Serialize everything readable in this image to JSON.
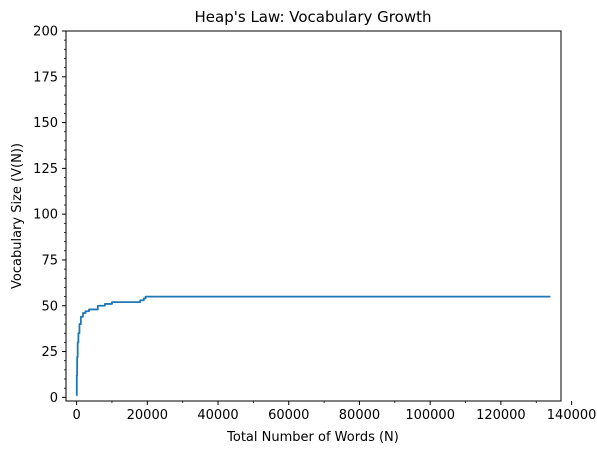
{
  "chart_data": {
    "type": "line",
    "title": "Heap's Law: Vocabulary Growth",
    "xlabel": "Total Number of Words (N)",
    "ylabel": "Vocabulary Size (V(N))",
    "xlim": [
      -3000,
      137000
    ],
    "ylim": [
      -2,
      200
    ],
    "xticks": [
      0,
      20000,
      40000,
      60000,
      80000,
      100000,
      120000,
      140000
    ],
    "xtick_labels": [
      "0",
      "20000",
      "40000",
      "60000",
      "80000",
      "100000",
      "120000",
      "140000"
    ],
    "yticks": [
      0,
      25,
      50,
      75,
      100,
      125,
      150,
      175,
      200
    ],
    "ytick_labels": [
      "0",
      "25",
      "50",
      "75",
      "100",
      "125",
      "150",
      "175",
      "200"
    ],
    "x_minor_step": 10000,
    "y_minor_step": 5,
    "grid": false,
    "series": [
      {
        "color": "#1f77b4",
        "x": [
          1,
          50,
          150,
          300,
          500,
          800,
          1200,
          1800,
          2500,
          3500,
          5500,
          6000,
          7500,
          8000,
          9000,
          10000,
          17000,
          18000,
          19000,
          19500,
          20000,
          134000
        ],
        "y": [
          1,
          12,
          22,
          30,
          35,
          40,
          44,
          46,
          47,
          48,
          48,
          50,
          50,
          51,
          51,
          52,
          52,
          53,
          54,
          55,
          55,
          55
        ]
      }
    ]
  }
}
